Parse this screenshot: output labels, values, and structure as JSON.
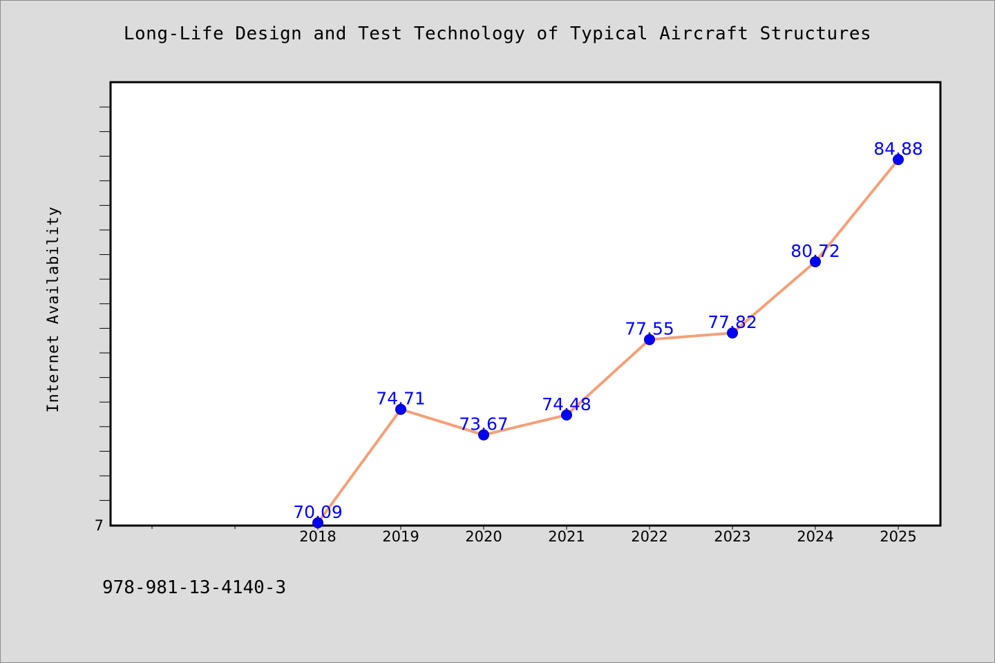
{
  "chart_data": {
    "type": "line",
    "title": "Long-Life Design and Test Technology of Typical Aircraft Structures",
    "xlabel": "",
    "ylabel": "Internet Availability",
    "categories": [
      "2018",
      "2019",
      "2020",
      "2021",
      "2022",
      "2023",
      "2024",
      "2025"
    ],
    "series": [
      {
        "values": [
          70.09,
          74.71,
          73.67,
          74.48,
          77.55,
          77.82,
          80.72,
          84.88
        ]
      }
    ],
    "data_labels": [
      "70.09",
      "74.71",
      "73.67",
      "74.48",
      "77.55",
      "77.82",
      "80.72",
      "84.88"
    ],
    "y_tick_label": "7",
    "ylim": [
      70,
      88
    ],
    "grid": false,
    "legend": "none",
    "colors": {
      "line": "#f4a07a",
      "marker": "#0000ff",
      "label": "#0000ff",
      "background": "#dcdcdc",
      "plot_background": "#ffffff"
    }
  },
  "footer_note": "978-981-13-4140-3"
}
